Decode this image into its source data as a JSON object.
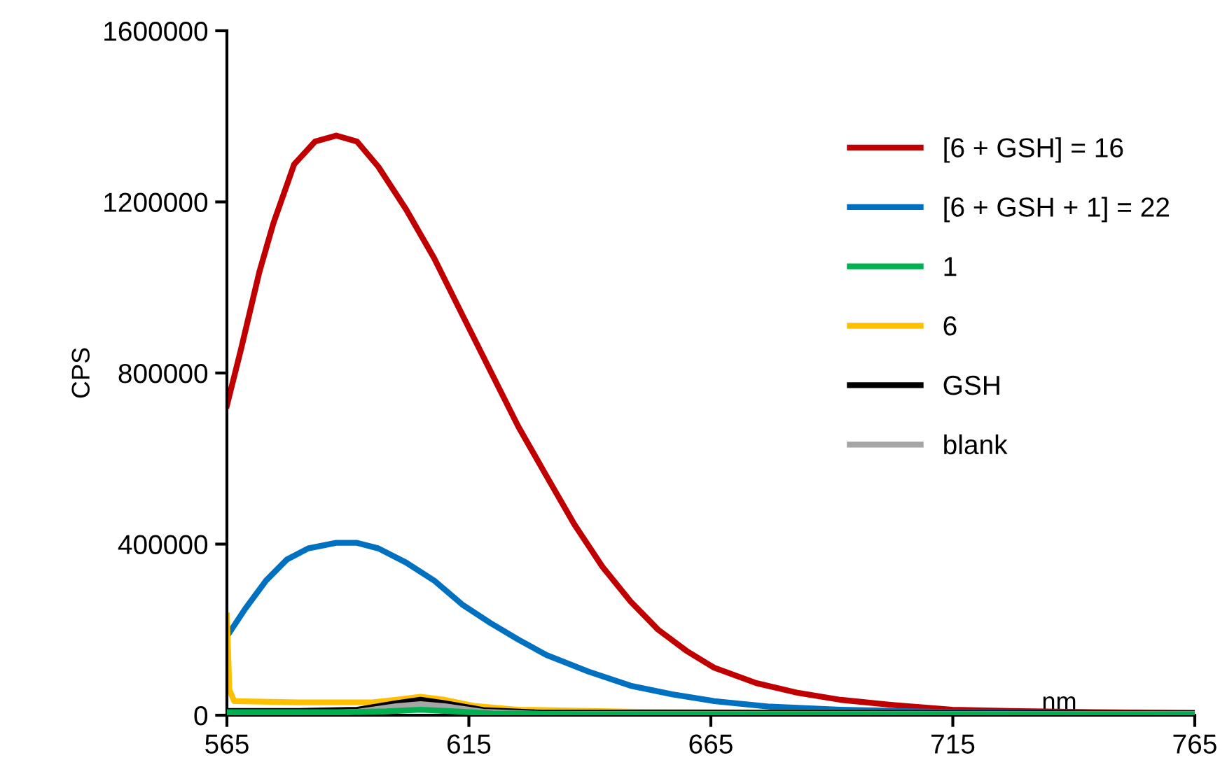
{
  "chart_data": {
    "type": "line",
    "xlabel": "nm",
    "ylabel": "CPS",
    "xlim": [
      565,
      765
    ],
    "xticks": [
      565,
      615,
      665,
      715,
      765
    ],
    "ylim": [
      0,
      1600000
    ],
    "yticks": [
      0,
      400000,
      800000,
      1200000,
      1600000
    ],
    "grid": false,
    "legend": "top right",
    "marker": "none",
    "line_style": "solid",
    "series": [
      {
        "name": "[6 + GSH] = 16",
        "color": "#c00000",
        "x": [
          565,
          567.9,
          571.7,
          574.6,
          578.9,
          583.2,
          587.6,
          591.9,
          596.3,
          602.0,
          607.8,
          613.6,
          619.4,
          625.2,
          631.0,
          636.8,
          642.6,
          648.4,
          654.1,
          659.9,
          665.7,
          674.4,
          683.1,
          691.8,
          703.4,
          714.9,
          726.5,
          743.9,
          765
        ],
        "values": [
          724000,
          855000,
          1036000,
          1150000,
          1288000,
          1341000,
          1355000,
          1341000,
          1282000,
          1183000,
          1069000,
          937000,
          806000,
          675000,
          560000,
          446000,
          347000,
          266000,
          200000,
          151000,
          111000,
          75000,
          52000,
          36000,
          23000,
          13000,
          10000,
          7000,
          5000
        ]
      },
      {
        "name": "[6 + GSH + 1] = 22",
        "color": "#0070c0",
        "x": [
          565,
          568.8,
          573.1,
          577.4,
          581.8,
          587.6,
          591.9,
          596.3,
          602.0,
          607.8,
          613.6,
          619.4,
          625.2,
          631.0,
          639.7,
          648.4,
          657.0,
          665.7,
          677.3,
          691.8,
          714.9,
          765
        ],
        "values": [
          184000,
          249000,
          315000,
          364000,
          390000,
          403000,
          403000,
          390000,
          357000,
          315000,
          259000,
          216000,
          177000,
          141000,
          102000,
          69000,
          49000,
          33000,
          20000,
          13000,
          7000,
          3000
        ]
      },
      {
        "name": "1",
        "color": "#00b050",
        "x": [
          565,
          590,
          598,
          605,
          612,
          620,
          640,
          765
        ],
        "values": [
          7000,
          7000,
          9000,
          13000,
          9000,
          4000,
          2000,
          2000
        ]
      },
      {
        "name": "6",
        "color": "#ffc000",
        "x": [
          565,
          565.5,
          566.5,
          580,
          595,
          600,
          605,
          610,
          616,
          625,
          650,
          700,
          765
        ],
        "values": [
          233000,
          60000,
          33000,
          30000,
          30000,
          36000,
          43000,
          36000,
          22000,
          13000,
          8000,
          5000,
          3000
        ]
      },
      {
        "name": "GSH",
        "color": "#000000",
        "x": [
          565,
          580,
          592,
          600,
          605,
          610,
          618,
          630,
          765
        ],
        "values": [
          10000,
          10000,
          13000,
          28000,
          36000,
          28000,
          12000,
          6000,
          5000
        ]
      },
      {
        "name": "blank",
        "color": "#a5a5a5",
        "x": [
          565,
          580,
          592,
          600,
          605,
          610,
          618,
          630,
          765
        ],
        "values": [
          3000,
          3000,
          8000,
          21000,
          26000,
          21000,
          8000,
          3000,
          3000
        ]
      }
    ]
  }
}
